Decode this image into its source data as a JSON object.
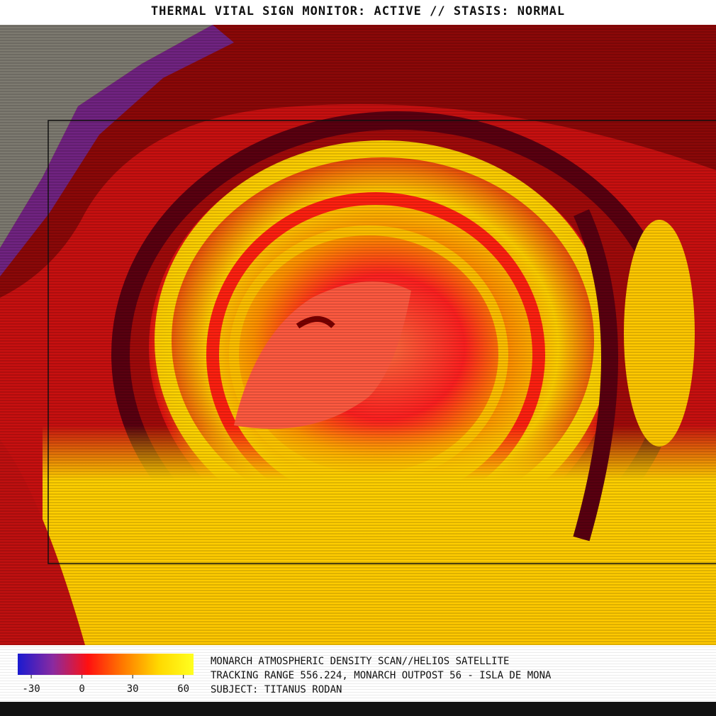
{
  "header": {
    "title": "THERMAL VITAL SIGN MONITOR: ACTIVE // STASIS: NORMAL"
  },
  "colorbar": {
    "lim": [
      -38,
      66
    ],
    "ticks": [
      -30,
      0,
      30,
      60
    ],
    "colors": [
      "#1a1ad0",
      "#8a2aa0",
      "#ff1010",
      "#ff7a00",
      "#ffd800",
      "#ffff20"
    ]
  },
  "caption": {
    "lines": [
      "MONARCH ATMOSPHERIC DENSITY SCAN//HELIOS SATELLITE",
      "TRACKING RANGE 556.224, MONARCH OUTPOST 56 - ISLA DE MONA",
      "SUBJECT: TITANUS RODAN"
    ]
  }
}
